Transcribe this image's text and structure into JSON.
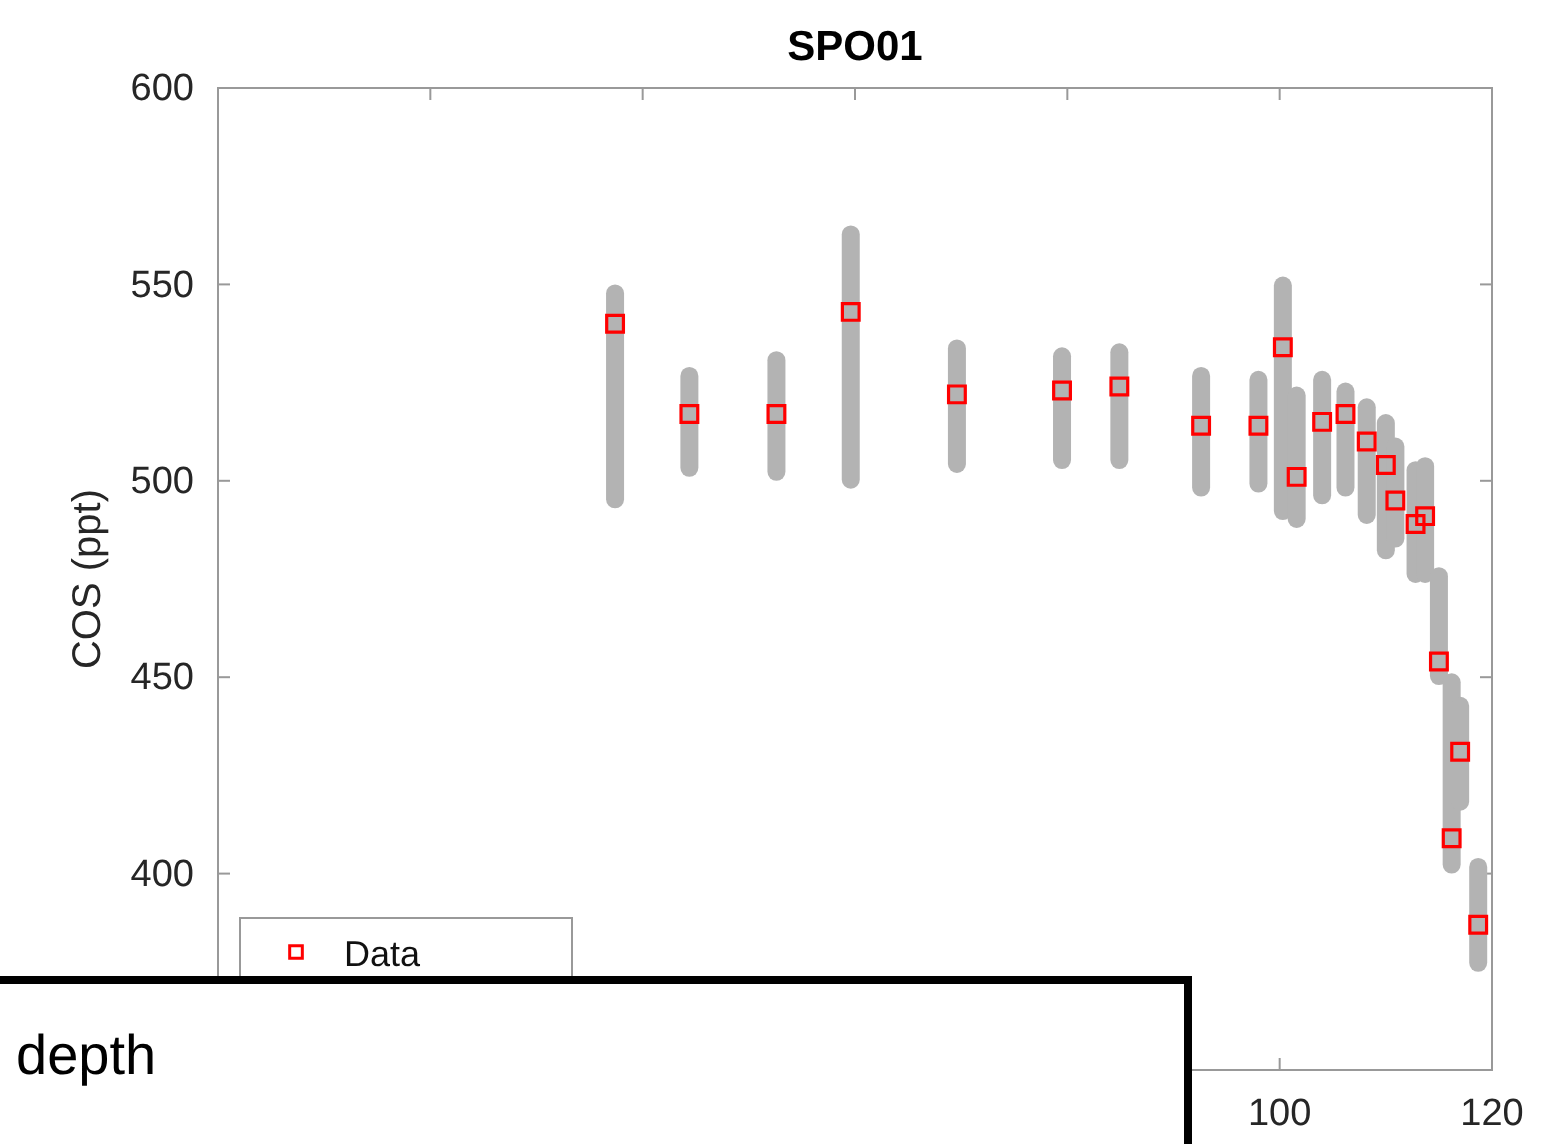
{
  "chart_data": {
    "type": "scatter",
    "title": "SPO01",
    "xlabel": "depth",
    "ylabel": "COS (ppt)",
    "x": [
      37.4,
      44.4,
      52.6,
      59.6,
      69.6,
      79.5,
      84.9,
      92.6,
      98,
      100.3,
      101.6,
      104,
      106.2,
      108.2,
      110,
      110.9,
      112.8,
      113.7,
      115,
      116.2,
      117,
      118.7
    ],
    "series": [
      {
        "type": "bar",
        "color": "#b3b3b3",
        "base": [
          493,
          501,
          500,
          498,
          502,
          503,
          503,
          496,
          497,
          490,
          488,
          494,
          496,
          489,
          480,
          483,
          474,
          474,
          448,
          400,
          416,
          375
        ],
        "values": [
          57,
          28,
          33,
          67,
          34,
          31,
          32,
          33,
          31,
          62,
          36,
          34,
          29,
          32,
          37,
          28,
          31,
          32,
          30,
          51,
          29,
          29
        ]
      },
      {
        "name": "Data",
        "color": "#ff0000",
        "values": [
          540,
          517,
          517,
          543,
          522,
          523,
          524,
          514,
          514,
          534,
          501,
          515,
          517,
          510,
          504,
          495,
          489,
          491,
          454,
          409,
          431,
          387
        ]
      }
    ],
    "xlim": [
      0,
      120
    ],
    "ylim": [
      350,
      600
    ],
    "xticks": [
      {
        "value": 0,
        "label": null
      },
      {
        "value": 20,
        "label": null
      },
      {
        "value": 40,
        "label": null
      },
      {
        "value": 60,
        "label": null
      },
      {
        "value": 80,
        "label": null
      },
      100,
      120
    ],
    "yticks": [
      400,
      450,
      500,
      550,
      600
    ],
    "marker": "square",
    "legend": "bottom left"
  }
}
